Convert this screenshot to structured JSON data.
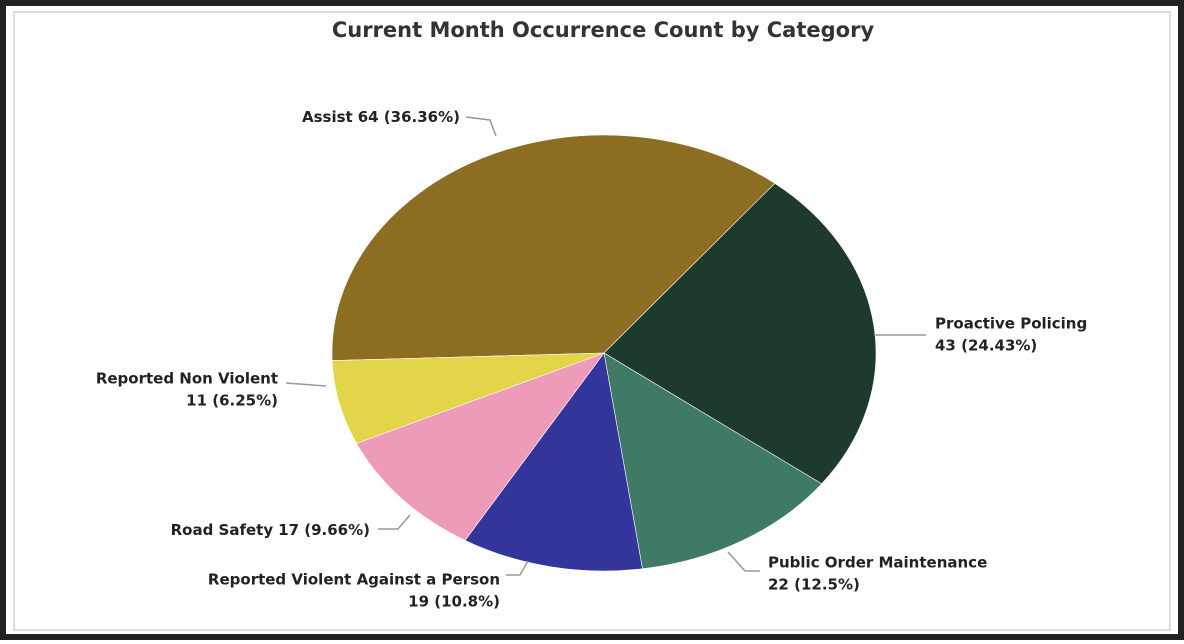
{
  "chart_data": {
    "type": "pie",
    "title": "Current Month Occurrence Count by Category",
    "categories": [
      "Assist",
      "Proactive Policing",
      "Public Order Maintenance",
      "Reported Violent Against a Person",
      "Road Safety",
      "Reported Non Violent"
    ],
    "values": [
      64,
      43,
      22,
      19,
      17,
      11
    ],
    "value_labels": [
      "64 (36.36%)",
      "43 (24.43%)",
      "22 (12.5%)",
      "19 (10.8%)",
      "17 (9.66%)",
      "11 (6.25%)"
    ],
    "colors": [
      "#8c6d22",
      "#1d3a2d",
      "#3f7a66",
      "#34359a",
      "#ee9bba",
      "#e3d54a"
    ]
  }
}
